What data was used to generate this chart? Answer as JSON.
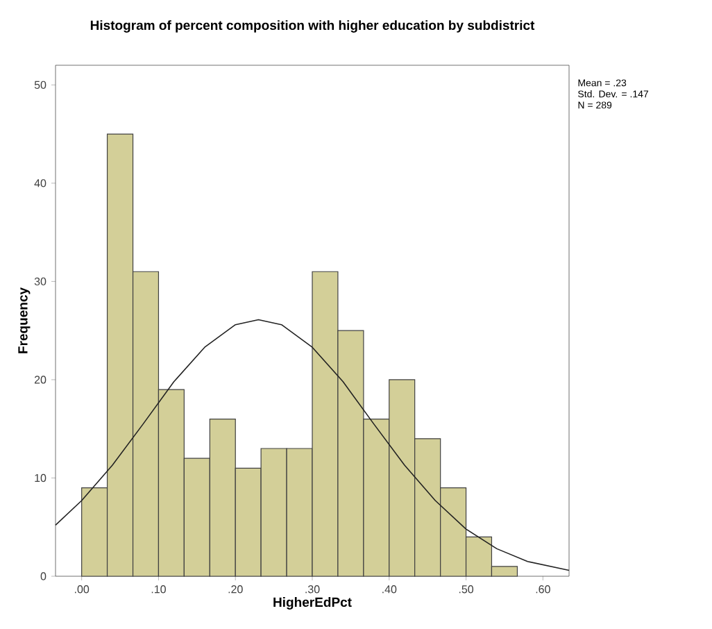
{
  "chart_data": {
    "type": "histogram",
    "title": "Histogram of percent composition with higher education by subdistrict",
    "xlabel": "HigherEdPct",
    "ylabel": "Frequency",
    "bins": [
      0,
      0.0333,
      0.0667,
      0.1,
      0.1333,
      0.1667,
      0.2,
      0.2333,
      0.2667,
      0.3,
      0.3333,
      0.3667,
      0.4,
      0.4333,
      0.4667,
      0.5,
      0.5333,
      0.5667
    ],
    "values": [
      9,
      45,
      31,
      19,
      12,
      16,
      11,
      13,
      13,
      31,
      25,
      16,
      20,
      14,
      9,
      4,
      1
    ],
    "color": "#d3cf98",
    "series": [
      {
        "type": "line",
        "color": "#222222",
        "x": [
          -0.034,
          0.0,
          0.04,
          0.08,
          0.12,
          0.16,
          0.2,
          0.23,
          0.26,
          0.3,
          0.34,
          0.38,
          0.42,
          0.46,
          0.5,
          0.54,
          0.58,
          0.634
        ],
        "values": [
          5.2,
          7.7,
          11.3,
          15.5,
          19.8,
          23.3,
          25.6,
          26.1,
          25.6,
          23.3,
          19.8,
          15.5,
          11.3,
          7.7,
          4.8,
          2.8,
          1.5,
          0.6
        ]
      }
    ],
    "xlim": [
      -0.034,
      0.634
    ],
    "ylim": [
      0,
      52
    ],
    "xticks": [
      {
        "value": 0,
        "label": ".00"
      },
      {
        "value": 0.1,
        "label": ".10"
      },
      {
        "value": 0.2,
        "label": ".20"
      },
      {
        "value": 0.3,
        "label": ".30"
      },
      {
        "value": 0.4,
        "label": ".40"
      },
      {
        "value": 0.5,
        "label": ".50"
      },
      {
        "value": 0.6,
        "label": ".60"
      }
    ],
    "yticks": [
      0,
      10,
      20,
      30,
      40,
      50
    ],
    "annotations": [
      "Mean = .23",
      "Std. Dev. = .147",
      "N = 289"
    ]
  }
}
